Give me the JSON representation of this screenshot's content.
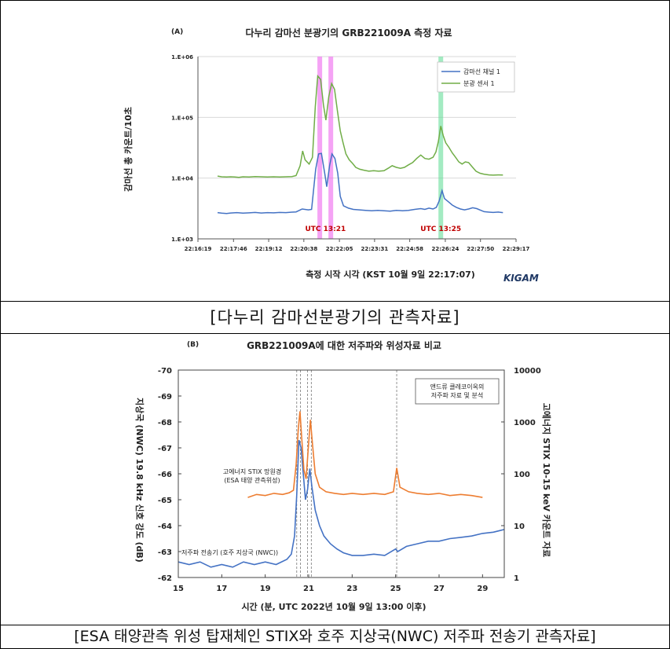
{
  "chart_data": [
    {
      "type": "line",
      "panel_label": "(A)",
      "title": "다누리 감마선 분광기의 GRB221009A 측정 자료",
      "xlabel": "측정 시작 시각 (KST 10월 9일 22:17:07)",
      "ylabel": "감마선 총 카운트/10초",
      "y_scale": "log",
      "ylim": [
        1000,
        1000000
      ],
      "y_ticks": [
        1000,
        10000,
        100000,
        1000000
      ],
      "y_tick_labels": [
        "1.E+03",
        "1.E+04",
        "1.E+05",
        "1.E+06"
      ],
      "x_unit": "seconds since 22:16:19 KST",
      "xlim": [
        0,
        778
      ],
      "x_ticks": [
        0,
        87,
        173,
        259,
        346,
        432,
        518,
        605,
        691,
        778
      ],
      "x_tick_labels": [
        "22:16:19",
        "22:17:46",
        "22:19:12",
        "22:20:38",
        "22:22:05",
        "22:23:31",
        "22:24:58",
        "22:26:24",
        "22:27:50",
        "22:29:17"
      ],
      "grid": true,
      "legend_position": "top-right",
      "series": [
        {
          "name": "감마선 채널 1",
          "color": "#4472c4",
          "points": [
            [
              48,
              2700
            ],
            [
              58,
              2650
            ],
            [
              70,
              2620
            ],
            [
              80,
              2660
            ],
            [
              95,
              2700
            ],
            [
              110,
              2650
            ],
            [
              125,
              2680
            ],
            [
              140,
              2720
            ],
            [
              155,
              2660
            ],
            [
              170,
              2700
            ],
            [
              185,
              2680
            ],
            [
              200,
              2720
            ],
            [
              215,
              2700
            ],
            [
              230,
              2750
            ],
            [
              240,
              2780
            ],
            [
              255,
              3100
            ],
            [
              270,
              3000
            ],
            [
              278,
              3050
            ],
            [
              288,
              14000
            ],
            [
              295,
              25000
            ],
            [
              302,
              25500
            ],
            [
              310,
              12000
            ],
            [
              315,
              7200
            ],
            [
              322,
              16000
            ],
            [
              328,
              25000
            ],
            [
              335,
              21000
            ],
            [
              342,
              12000
            ],
            [
              348,
              5000
            ],
            [
              356,
              3500
            ],
            [
              368,
              3200
            ],
            [
              380,
              3050
            ],
            [
              395,
              3000
            ],
            [
              410,
              2950
            ],
            [
              425,
              2900
            ],
            [
              440,
              2950
            ],
            [
              455,
              2900
            ],
            [
              470,
              2850
            ],
            [
              485,
              2950
            ],
            [
              500,
              2900
            ],
            [
              515,
              2950
            ],
            [
              530,
              3050
            ],
            [
              545,
              3150
            ],
            [
              555,
              3050
            ],
            [
              565,
              3200
            ],
            [
              575,
              3100
            ],
            [
              583,
              3300
            ],
            [
              590,
              4200
            ],
            [
              597,
              6200
            ],
            [
              603,
              4600
            ],
            [
              612,
              4100
            ],
            [
              622,
              3600
            ],
            [
              632,
              3300
            ],
            [
              642,
              3100
            ],
            [
              652,
              3000
            ],
            [
              662,
              3100
            ],
            [
              672,
              3250
            ],
            [
              682,
              3150
            ],
            [
              692,
              2950
            ],
            [
              700,
              2800
            ],
            [
              712,
              2750
            ],
            [
              722,
              2720
            ],
            [
              735,
              2760
            ],
            [
              746,
              2700
            ]
          ]
        },
        {
          "name": "분광 센서 1",
          "color": "#70ad47",
          "points": [
            [
              48,
              10800
            ],
            [
              58,
              10500
            ],
            [
              70,
              10450
            ],
            [
              80,
              10500
            ],
            [
              90,
              10400
            ],
            [
              100,
              10300
            ],
            [
              110,
              10500
            ],
            [
              125,
              10400
            ],
            [
              140,
              10600
            ],
            [
              155,
              10500
            ],
            [
              170,
              10400
            ],
            [
              185,
              10500
            ],
            [
              200,
              10450
            ],
            [
              215,
              10500
            ],
            [
              230,
              10600
            ],
            [
              240,
              11000
            ],
            [
              250,
              16000
            ],
            [
              256,
              28000
            ],
            [
              262,
              20000
            ],
            [
              272,
              17000
            ],
            [
              280,
              22000
            ],
            [
              287,
              150000
            ],
            [
              293,
              480000
            ],
            [
              300,
              420000
            ],
            [
              307,
              160000
            ],
            [
              313,
              90000
            ],
            [
              320,
              220000
            ],
            [
              327,
              360000
            ],
            [
              334,
              290000
            ],
            [
              341,
              130000
            ],
            [
              348,
              60000
            ],
            [
              355,
              38000
            ],
            [
              362,
              25000
            ],
            [
              370,
              20000
            ],
            [
              378,
              17500
            ],
            [
              386,
              15000
            ],
            [
              396,
              14000
            ],
            [
              406,
              13500
            ],
            [
              418,
              13000
            ],
            [
              430,
              13200
            ],
            [
              442,
              13000
            ],
            [
              455,
              13200
            ],
            [
              465,
              14500
            ],
            [
              475,
              16000
            ],
            [
              485,
              15000
            ],
            [
              495,
              14500
            ],
            [
              505,
              15000
            ],
            [
              515,
              16500
            ],
            [
              525,
              18000
            ],
            [
              535,
              21000
            ],
            [
              545,
              24000
            ],
            [
              555,
              21000
            ],
            [
              565,
              20500
            ],
            [
              575,
              22000
            ],
            [
              582,
              27000
            ],
            [
              588,
              40000
            ],
            [
              594,
              72000
            ],
            [
              600,
              50000
            ],
            [
              606,
              38000
            ],
            [
              614,
              32000
            ],
            [
              622,
              26000
            ],
            [
              630,
              22000
            ],
            [
              638,
              18500
            ],
            [
              646,
              17000
            ],
            [
              654,
              18500
            ],
            [
              662,
              18000
            ],
            [
              670,
              15500
            ],
            [
              680,
              13000
            ],
            [
              690,
              12000
            ],
            [
              700,
              11600
            ],
            [
              712,
              11300
            ],
            [
              722,
              11200
            ],
            [
              734,
              11300
            ],
            [
              746,
              11250
            ]
          ]
        }
      ],
      "highlight_bands": [
        {
          "x": 298,
          "color": "#ee66ee"
        },
        {
          "x": 325,
          "color": "#ee66ee"
        },
        {
          "x": 594,
          "color": "#66dd99"
        }
      ],
      "annotations": [
        {
          "text": "UTC 13:21",
          "x": 312,
          "y": 1350,
          "color": "#c00000"
        },
        {
          "text": "UTC 13:25",
          "x": 594,
          "y": 1350,
          "color": "#c00000"
        }
      ],
      "logo": "KIGAM"
    },
    {
      "type": "line",
      "panel_label": "(B)",
      "title": "GRB221009A에 대한 저주파와 위성자료 비교",
      "xlabel": "시간 (분, UTC 2022년 10월 9일 13:00 이후)",
      "ylabel_left": "지상국 (NWC) 19.8 kHz 신호 강도 (dB)",
      "ylabel_right": "고에너지 STIX 10-15 keV 카운트 자료",
      "xlim": [
        15,
        30
      ],
      "x_ticks": [
        15,
        17,
        19,
        21,
        23,
        25,
        27,
        29
      ],
      "y_left_lim": [
        -70,
        -62
      ],
      "y_left_ticks": [
        -70,
        -69,
        -68,
        -67,
        -66,
        -65,
        -64,
        -63,
        -62
      ],
      "y_right_scale": "log",
      "y_right_lim": [
        1,
        10000
      ],
      "y_right_ticks": [
        1,
        10,
        100,
        1000,
        10000
      ],
      "vlines": [
        20.45,
        20.62,
        20.95,
        21.12,
        25.05
      ],
      "legend_box": "앤드류 클레코이옥의\n저주파 자료 및 분석",
      "series": [
        {
          "name": "저주파 전송기 (호주 지상국 (NWC))",
          "axis": "left",
          "color": "#4472c4",
          "points": [
            [
              15.0,
              -62.6
            ],
            [
              15.5,
              -62.5
            ],
            [
              16.0,
              -62.6
            ],
            [
              16.5,
              -62.4
            ],
            [
              17.0,
              -62.5
            ],
            [
              17.5,
              -62.4
            ],
            [
              18.0,
              -62.6
            ],
            [
              18.5,
              -62.5
            ],
            [
              19.0,
              -62.6
            ],
            [
              19.5,
              -62.5
            ],
            [
              20.0,
              -62.7
            ],
            [
              20.2,
              -62.9
            ],
            [
              20.35,
              -63.6
            ],
            [
              20.45,
              -65.2
            ],
            [
              20.55,
              -67.3
            ],
            [
              20.65,
              -67.0
            ],
            [
              20.75,
              -66.0
            ],
            [
              20.85,
              -65.0
            ],
            [
              20.95,
              -65.4
            ],
            [
              21.05,
              -66.2
            ],
            [
              21.15,
              -65.5
            ],
            [
              21.3,
              -64.6
            ],
            [
              21.5,
              -64.0
            ],
            [
              21.7,
              -63.6
            ],
            [
              22.0,
              -63.3
            ],
            [
              22.3,
              -63.1
            ],
            [
              22.6,
              -62.95
            ],
            [
              23.0,
              -62.85
            ],
            [
              23.5,
              -62.85
            ],
            [
              24.0,
              -62.9
            ],
            [
              24.5,
              -62.85
            ],
            [
              25.0,
              -63.1
            ],
            [
              25.1,
              -63.0
            ],
            [
              25.5,
              -63.2
            ],
            [
              26.0,
              -63.3
            ],
            [
              26.5,
              -63.4
            ],
            [
              27.0,
              -63.4
            ],
            [
              27.5,
              -63.5
            ],
            [
              28.0,
              -63.55
            ],
            [
              28.5,
              -63.6
            ],
            [
              29.0,
              -63.7
            ],
            [
              29.5,
              -63.75
            ],
            [
              30.0,
              -63.85
            ]
          ]
        },
        {
          "name": "고에너지 STIX 망원경 (ESA 태양 관측위성)",
          "axis": "right",
          "color": "#ed7d31",
          "points": [
            [
              18.2,
              35
            ],
            [
              18.6,
              40
            ],
            [
              19.0,
              38
            ],
            [
              19.4,
              42
            ],
            [
              19.8,
              40
            ],
            [
              20.1,
              43
            ],
            [
              20.3,
              48
            ],
            [
              20.42,
              150
            ],
            [
              20.52,
              700
            ],
            [
              20.6,
              1600
            ],
            [
              20.68,
              500
            ],
            [
              20.78,
              120
            ],
            [
              20.88,
              80
            ],
            [
              20.98,
              300
            ],
            [
              21.08,
              1100
            ],
            [
              21.18,
              350
            ],
            [
              21.3,
              100
            ],
            [
              21.5,
              55
            ],
            [
              21.8,
              45
            ],
            [
              22.2,
              42
            ],
            [
              22.6,
              40
            ],
            [
              23.0,
              42
            ],
            [
              23.5,
              40
            ],
            [
              24.0,
              42
            ],
            [
              24.5,
              40
            ],
            [
              24.9,
              45
            ],
            [
              25.05,
              130
            ],
            [
              25.2,
              55
            ],
            [
              25.6,
              45
            ],
            [
              26.0,
              42
            ],
            [
              26.5,
              40
            ],
            [
              27.0,
              42
            ],
            [
              27.5,
              38
            ],
            [
              28.0,
              40
            ],
            [
              28.5,
              38
            ],
            [
              29.0,
              35
            ]
          ]
        }
      ]
    }
  ],
  "captions": {
    "a": "[다누리 감마선분광기의 관측자료]",
    "b": "[ESA 태양관측 위성 탑재체인 STIX와 호주 지상국(NWC) 저주파 전송기 관측자료]"
  }
}
